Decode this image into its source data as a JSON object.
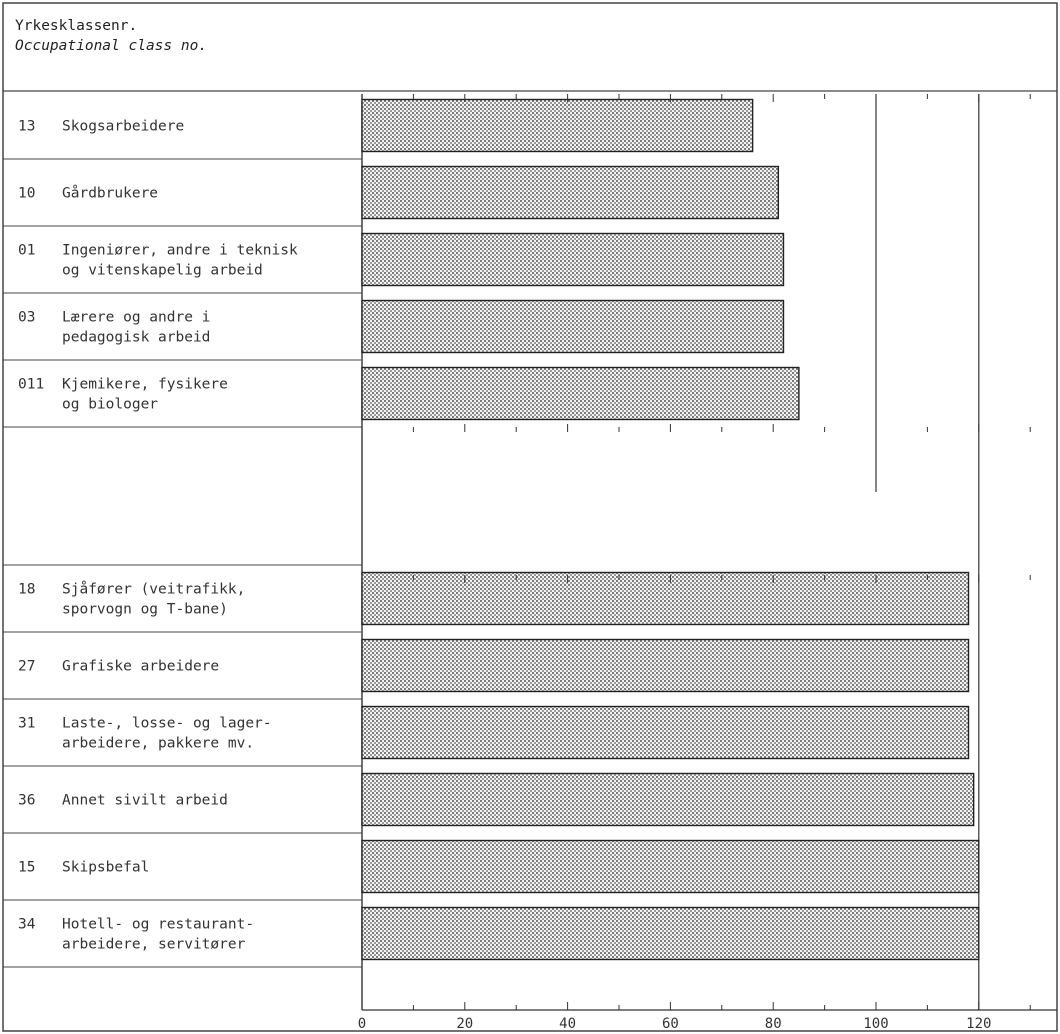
{
  "header": {
    "label_no": "Yrkesklassenr.",
    "label_en": "Occupational class no."
  },
  "chart_data": {
    "type": "bar",
    "orientation": "horizontal",
    "xlim": [
      0,
      130
    ],
    "x_ticks": [
      0,
      20,
      40,
      60,
      80,
      100,
      120
    ],
    "reference_line": 100,
    "bar_pattern": "dotted-hatch",
    "groups": [
      {
        "name": "",
        "rows": [
          {
            "code": "13",
            "label": [
              "Skogsarbeidere"
            ],
            "value": 76
          },
          {
            "code": "10",
            "label": [
              "Gårdbrukere"
            ],
            "value": 81
          },
          {
            "code": "01",
            "label": [
              "Ingeniører, andre i teknisk",
              "og vitenskapelig arbeid"
            ],
            "value": 82
          },
          {
            "code": "03",
            "label": [
              "Lærere og andre i",
              "pedagogisk arbeid"
            ],
            "value": 82
          },
          {
            "code": "011",
            "label": [
              "Kjemikere, fysikere",
              "og biologer"
            ],
            "value": 85
          }
        ]
      },
      {
        "name": "",
        "rows": [
          {
            "code": "18",
            "label": [
              "Sjåfører (veitrafikk,",
              "sporvogn og T-bane)"
            ],
            "value": 118
          },
          {
            "code": "27",
            "label": [
              "Grafiske arbeidere"
            ],
            "value": 118
          },
          {
            "code": "31",
            "label": [
              "Laste-, losse- og lager-",
              "arbeidere, pakkere mv."
            ],
            "value": 118
          },
          {
            "code": "36",
            "label": [
              "Annet sivilt arbeid"
            ],
            "value": 119
          },
          {
            "code": "15",
            "label": [
              "Skipsbefal"
            ],
            "value": 120
          },
          {
            "code": "34",
            "label": [
              "Hotell- og restaurant-",
              "arbeidere, servitører"
            ],
            "value": 120
          }
        ]
      }
    ]
  }
}
